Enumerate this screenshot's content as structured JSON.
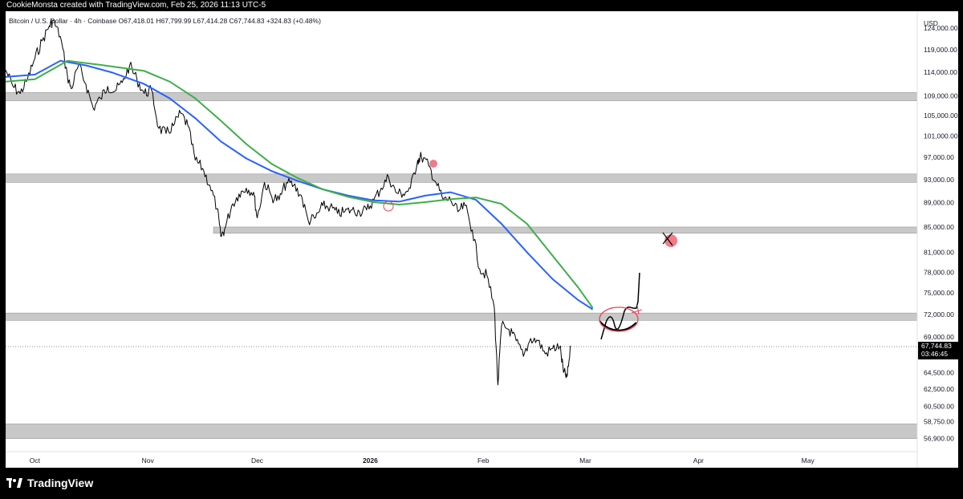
{
  "header": {
    "credit": "CookieMonsta created with TradingView.com, Feb 25, 2026 11:13 UTC-5"
  },
  "symbol_info": "Bitcoin / U.S. Dollar · 4h · Coinbase O67,418.01 H67,799.99 L67,414.28 C67,744.83 +324.83 (+0.48%)",
  "price_axis": {
    "currency": "USD",
    "current_price": "67,744.83",
    "countdown": "03:46:45"
  },
  "footer": {
    "brand": "TradingView"
  },
  "colors": {
    "candles": "#000000",
    "ma_fast": "#2962ff",
    "ma_slow": "#3fae49",
    "zone": "#c8c8c8",
    "annotation": "#e8455a",
    "price_label_bg": "#000000"
  },
  "chart_data": {
    "type": "line",
    "title": "",
    "xlabel": "",
    "ylabel": "",
    "y_scale": "log",
    "ylim": [
      55500,
      128000
    ],
    "x_range": [
      "2025-09-23",
      "2026-05-31"
    ],
    "x_ticks": [
      {
        "label": "Oct",
        "date": "2025-10-01"
      },
      {
        "label": "Nov",
        "date": "2025-11-01"
      },
      {
        "label": "Dec",
        "date": "2025-12-01"
      },
      {
        "label": "2026",
        "date": "2026-01-01"
      },
      {
        "label": "Feb",
        "date": "2026-02-01"
      },
      {
        "label": "Mar",
        "date": "2026-03-01"
      },
      {
        "label": "Apr",
        "date": "2026-04-01"
      },
      {
        "label": "May",
        "date": "2026-05-01"
      }
    ],
    "y_ticks": [
      "124,000.00",
      "119,000.00",
      "114,000.00",
      "109,000.00",
      "105,000.00",
      "101,000.00",
      "97,000.00",
      "93,000.00",
      "89,000.00",
      "85,000.00",
      "81,000.00",
      "78,000.00",
      "75,000.00",
      "72,000.00",
      "69,000.00",
      "64,500.00",
      "62,500.00",
      "60,500.00",
      "58,750.00",
      "56,900.00"
    ],
    "series": [
      {
        "role": "price",
        "points": [
          [
            "2025-09-23",
            114500
          ],
          [
            "2025-09-25",
            111000
          ],
          [
            "2025-09-27",
            109500
          ],
          [
            "2025-09-29",
            112500
          ],
          [
            "2025-10-01",
            117000
          ],
          [
            "2025-10-03",
            121000
          ],
          [
            "2025-10-05",
            124500
          ],
          [
            "2025-10-06",
            125800
          ],
          [
            "2025-10-08",
            122000
          ],
          [
            "2025-10-10",
            113000
          ],
          [
            "2025-10-11",
            110500
          ],
          [
            "2025-10-13",
            115500
          ],
          [
            "2025-10-15",
            111500
          ],
          [
            "2025-10-17",
            106500
          ],
          [
            "2025-10-19",
            108500
          ],
          [
            "2025-10-21",
            111000
          ],
          [
            "2025-10-23",
            110000
          ],
          [
            "2025-10-25",
            111800
          ],
          [
            "2025-10-27",
            115500
          ],
          [
            "2025-10-29",
            112500
          ],
          [
            "2025-10-31",
            109500
          ],
          [
            "2025-11-02",
            110200
          ],
          [
            "2025-11-04",
            102500
          ],
          [
            "2025-11-06",
            101500
          ],
          [
            "2025-11-08",
            103000
          ],
          [
            "2025-11-10",
            105500
          ],
          [
            "2025-11-12",
            103000
          ],
          [
            "2025-11-14",
            96500
          ],
          [
            "2025-11-16",
            95000
          ],
          [
            "2025-11-18",
            92000
          ],
          [
            "2025-11-20",
            88000
          ],
          [
            "2025-11-21",
            83500
          ],
          [
            "2025-11-22",
            84500
          ],
          [
            "2025-11-24",
            88500
          ],
          [
            "2025-11-26",
            90500
          ],
          [
            "2025-11-28",
            91500
          ],
          [
            "2025-11-30",
            90800
          ],
          [
            "2025-12-01",
            86500
          ],
          [
            "2025-12-03",
            92500
          ],
          [
            "2025-12-05",
            90000
          ],
          [
            "2025-12-07",
            89500
          ],
          [
            "2025-12-09",
            92500
          ],
          [
            "2025-12-11",
            92000
          ],
          [
            "2025-12-13",
            90300
          ],
          [
            "2025-12-15",
            86000
          ],
          [
            "2025-12-17",
            86500
          ],
          [
            "2025-12-19",
            88500
          ],
          [
            "2025-12-21",
            88300
          ],
          [
            "2025-12-23",
            87200
          ],
          [
            "2025-12-25",
            87500
          ],
          [
            "2025-12-27",
            87800
          ],
          [
            "2025-12-29",
            87500
          ],
          [
            "2025-12-31",
            87800
          ],
          [
            "2026-01-02",
            89500
          ],
          [
            "2026-01-04",
            91500
          ],
          [
            "2026-01-06",
            93500
          ],
          [
            "2026-01-08",
            90800
          ],
          [
            "2026-01-10",
            90500
          ],
          [
            "2026-01-12",
            91500
          ],
          [
            "2026-01-14",
            96500
          ],
          [
            "2026-01-15",
            97200
          ],
          [
            "2026-01-17",
            95500
          ],
          [
            "2026-01-19",
            92500
          ],
          [
            "2026-01-21",
            89500
          ],
          [
            "2026-01-23",
            89500
          ],
          [
            "2026-01-25",
            87500
          ],
          [
            "2026-01-27",
            88500
          ],
          [
            "2026-01-29",
            84500
          ],
          [
            "2026-01-31",
            78500
          ],
          [
            "2026-02-02",
            77500
          ],
          [
            "2026-02-04",
            73000
          ],
          [
            "2026-02-05",
            63000
          ],
          [
            "2026-02-06",
            70500
          ],
          [
            "2026-02-08",
            70000
          ],
          [
            "2026-02-10",
            68500
          ],
          [
            "2026-02-12",
            66500
          ],
          [
            "2026-02-14",
            68800
          ],
          [
            "2026-02-16",
            68500
          ],
          [
            "2026-02-18",
            66800
          ],
          [
            "2026-02-20",
            67500
          ],
          [
            "2026-02-22",
            67800
          ],
          [
            "2026-02-23",
            64500
          ],
          [
            "2026-02-24",
            64000
          ],
          [
            "2026-02-25",
            67745
          ]
        ]
      },
      {
        "role": "moving-average",
        "color": "#2962ff",
        "points": [
          [
            "2025-09-23",
            113000
          ],
          [
            "2025-10-01",
            113500
          ],
          [
            "2025-10-08",
            116500
          ],
          [
            "2025-10-15",
            115500
          ],
          [
            "2025-10-22",
            114000
          ],
          [
            "2025-10-31",
            111500
          ],
          [
            "2025-11-07",
            108500
          ],
          [
            "2025-11-14",
            104500
          ],
          [
            "2025-11-21",
            100000
          ],
          [
            "2025-11-28",
            96800
          ],
          [
            "2025-12-05",
            94500
          ],
          [
            "2025-12-12",
            92800
          ],
          [
            "2025-12-19",
            91300
          ],
          [
            "2025-12-26",
            90200
          ],
          [
            "2026-01-02",
            89400
          ],
          [
            "2026-01-09",
            89200
          ],
          [
            "2026-01-16",
            90200
          ],
          [
            "2026-01-23",
            90800
          ],
          [
            "2026-01-30",
            89500
          ],
          [
            "2026-02-06",
            85500
          ],
          [
            "2026-02-13",
            81000
          ],
          [
            "2026-02-20",
            77000
          ],
          [
            "2026-02-27",
            74000
          ],
          [
            "2026-03-03",
            72700
          ]
        ]
      },
      {
        "role": "moving-average",
        "color": "#3fae49",
        "points": [
          [
            "2025-09-23",
            112000
          ],
          [
            "2025-10-01",
            112500
          ],
          [
            "2025-10-10",
            116500
          ],
          [
            "2025-10-20",
            115500
          ],
          [
            "2025-10-31",
            114300
          ],
          [
            "2025-11-07",
            112000
          ],
          [
            "2025-11-14",
            108500
          ],
          [
            "2025-11-21",
            104000
          ],
          [
            "2025-11-28",
            99500
          ],
          [
            "2025-12-05",
            95800
          ],
          [
            "2025-12-12",
            93300
          ],
          [
            "2025-12-19",
            91300
          ],
          [
            "2025-12-26",
            90000
          ],
          [
            "2026-01-02",
            89100
          ],
          [
            "2026-01-09",
            88700
          ],
          [
            "2026-01-16",
            89100
          ],
          [
            "2026-01-23",
            89600
          ],
          [
            "2026-01-30",
            89900
          ],
          [
            "2026-02-06",
            88800
          ],
          [
            "2026-02-13",
            85500
          ],
          [
            "2026-02-20",
            80500
          ],
          [
            "2026-02-27",
            75800
          ],
          [
            "2026-03-03",
            72900
          ]
        ]
      }
    ],
    "zones": [
      {
        "from": 108000,
        "to": 109700,
        "start": "2025-09-23"
      },
      {
        "from": 92500,
        "to": 94000,
        "start": "2025-09-23"
      },
      {
        "from": 84000,
        "to": 85000,
        "start": "2025-11-19"
      },
      {
        "from": 71200,
        "to": 72200,
        "start": "2025-09-23"
      },
      {
        "from": 56900,
        "to": 58500,
        "start": "2025-09-23"
      }
    ]
  }
}
